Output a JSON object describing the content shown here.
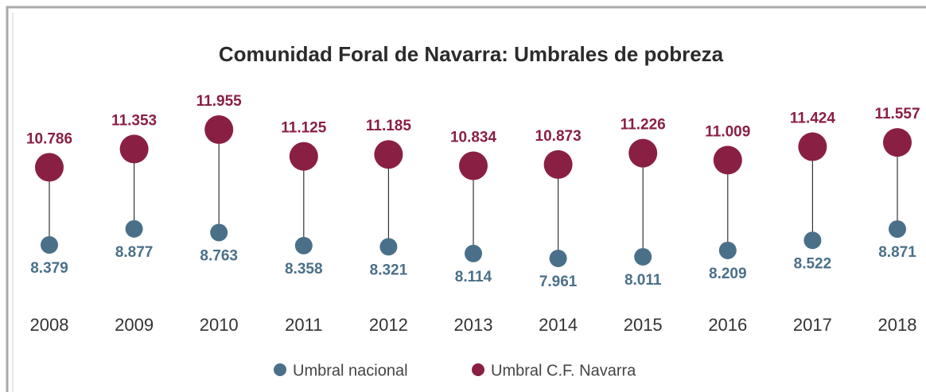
{
  "chart_data": {
    "type": "dumbbell",
    "title": "Comunidad Foral de Navarra: Umbrales de pobreza",
    "categories": [
      "2008",
      "2009",
      "2010",
      "2011",
      "2012",
      "2013",
      "2014",
      "2015",
      "2016",
      "2017",
      "2018"
    ],
    "series": [
      {
        "name": "Umbral nacional",
        "color": "#4a7089",
        "values": [
          8379,
          8877,
          8763,
          8358,
          8321,
          8114,
          7961,
          8011,
          8209,
          8522,
          8871
        ],
        "value_labels": [
          "8.379",
          "8.877",
          "8.763",
          "8.358",
          "8.321",
          "8.114",
          "7.961",
          "8.011",
          "8.209",
          "8.522",
          "8.871"
        ]
      },
      {
        "name": "Umbral C.F. Navarra",
        "color": "#8a1f44",
        "values": [
          10786,
          11353,
          11955,
          11125,
          11185,
          10834,
          10873,
          11226,
          11009,
          11424,
          11557
        ],
        "value_labels": [
          "10.786",
          "11.353",
          "11.955",
          "11.125",
          "11.185",
          "10.834",
          "10.873",
          "11.226",
          "11.009",
          "11.424",
          "11.557"
        ]
      }
    ]
  }
}
